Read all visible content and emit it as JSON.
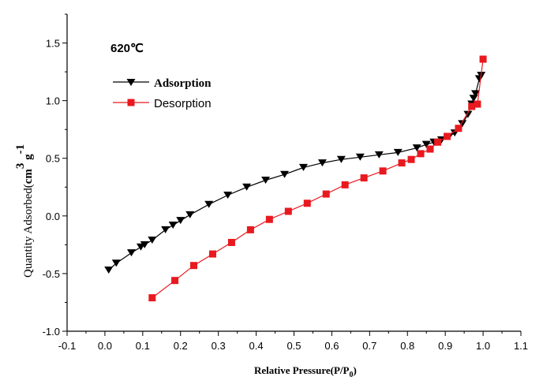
{
  "chart_data": {
    "type": "line",
    "title": "620℃",
    "xlabel": {
      "main": "Relative Pressure(P/P",
      "sub": "0",
      "close": ")"
    },
    "ylabel": {
      "main": "Quantity Adsorbed(",
      "unit": "cm",
      "sup1": "3",
      "g": " g",
      "sup2": "-1"
    },
    "xlim": [
      -0.1,
      1.1
    ],
    "ylim": [
      -1.0,
      1.75
    ],
    "xticks": [
      "-0.1",
      "0.0",
      "0.1",
      "0.2",
      "0.3",
      "0.4",
      "0.5",
      "0.6",
      "0.7",
      "0.8",
      "0.9",
      "1.0",
      "1.1"
    ],
    "xtick_values": [
      -0.1,
      0.0,
      0.1,
      0.2,
      0.3,
      0.4,
      0.5,
      0.6,
      0.7,
      0.8,
      0.9,
      1.0,
      1.1
    ],
    "yticks": [
      "-1.0",
      "-0.5",
      "0.0",
      "0.5",
      "1.0",
      "1.5"
    ],
    "ytick_values": [
      -1.0,
      -0.5,
      0.0,
      0.5,
      1.0,
      1.5
    ],
    "legend_position": "upper-left",
    "series": [
      {
        "name": "Adsorption",
        "color": "#000000",
        "marker": "triangle-down",
        "x": [
          0.01,
          0.03,
          0.07,
          0.095,
          0.105,
          0.125,
          0.16,
          0.18,
          0.2,
          0.225,
          0.275,
          0.325,
          0.375,
          0.425,
          0.475,
          0.525,
          0.575,
          0.625,
          0.675,
          0.725,
          0.775,
          0.825,
          0.85,
          0.87,
          0.89,
          0.91,
          0.925,
          0.945,
          0.96,
          0.97,
          0.975,
          0.98,
          0.99,
          0.995
        ],
        "y": [
          -0.47,
          -0.41,
          -0.32,
          -0.27,
          -0.25,
          -0.21,
          -0.12,
          -0.08,
          -0.04,
          0.01,
          0.1,
          0.18,
          0.25,
          0.31,
          0.36,
          0.42,
          0.46,
          0.49,
          0.51,
          0.53,
          0.55,
          0.59,
          0.62,
          0.64,
          0.66,
          0.69,
          0.72,
          0.8,
          0.88,
          0.97,
          1.02,
          1.06,
          1.19,
          1.22
        ]
      },
      {
        "name": "Desorption",
        "color": "#e8191f",
        "marker": "square",
        "x": [
          0.125,
          0.185,
          0.235,
          0.285,
          0.335,
          0.385,
          0.435,
          0.485,
          0.535,
          0.585,
          0.635,
          0.685,
          0.735,
          0.785,
          0.81,
          0.835,
          0.86,
          0.88,
          0.905,
          0.935,
          0.97,
          0.985,
          1.0
        ],
        "y": [
          -0.71,
          -0.56,
          -0.43,
          -0.33,
          -0.23,
          -0.12,
          -0.03,
          0.04,
          0.11,
          0.19,
          0.27,
          0.33,
          0.39,
          0.46,
          0.49,
          0.54,
          0.58,
          0.64,
          0.69,
          0.76,
          0.95,
          0.97,
          1.36
        ]
      }
    ]
  }
}
